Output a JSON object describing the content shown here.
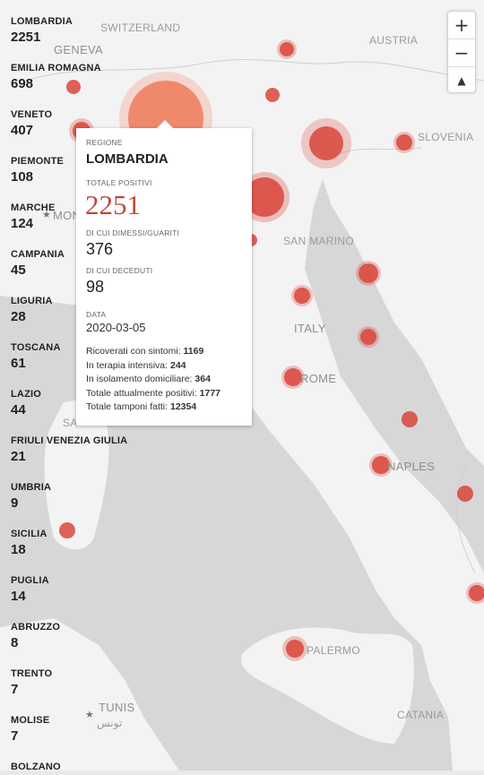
{
  "sidebar": {
    "regions": [
      {
        "name": "LOMBARDIA",
        "value": "2251"
      },
      {
        "name": "EMILIA ROMAGNA",
        "value": "698"
      },
      {
        "name": "VENETO",
        "value": "407"
      },
      {
        "name": "PIEMONTE",
        "value": "108"
      },
      {
        "name": "MARCHE",
        "value": "124"
      },
      {
        "name": "CAMPANIA",
        "value": "45"
      },
      {
        "name": "LIGURIA",
        "value": "28"
      },
      {
        "name": "TOSCANA",
        "value": "61"
      },
      {
        "name": "LAZIO",
        "value": "44"
      },
      {
        "name": "FRIULI VENEZIA GIULIA",
        "value": "21"
      },
      {
        "name": "UMBRIA",
        "value": "9"
      },
      {
        "name": "SICILIA",
        "value": "18"
      },
      {
        "name": "PUGLIA",
        "value": "14"
      },
      {
        "name": "ABRUZZO",
        "value": "8"
      },
      {
        "name": "TRENTO",
        "value": "7"
      },
      {
        "name": "MOLISE",
        "value": "7"
      },
      {
        "name": "BOLZANO",
        "value": ""
      }
    ]
  },
  "map": {
    "labels": {
      "switzerland": "SWITZERLAND",
      "austria": "AUSTRIA",
      "geneva": "GENEVA",
      "slovenia": "SLOVENIA",
      "san_marino": "SAN MARINO",
      "italy": "ITALY",
      "rome": "ROME",
      "naples": "NAPLES",
      "palermo": "PALERMO",
      "catania": "CATANIA",
      "tunis": "TUNIS",
      "tunis_ar": "تونس",
      "monaco_partial": "MON",
      "sassari_partial": "SA"
    },
    "colors": {
      "bubble": "#d9453a",
      "bubble_highlight": "#f07a5a",
      "land": "#f2f2f2",
      "sea": "#d6d6d6"
    }
  },
  "controls": {
    "zoom_in": "+",
    "zoom_out": "−",
    "reset_bearing": "▲"
  },
  "popup": {
    "region_label": "REGIONE",
    "region_name": "LOMBARDIA",
    "total_positive_label": "TOTALE POSITIVI",
    "total_positive": "2251",
    "recovered_label": "DI CUI DIMESSI/GUARITI",
    "recovered": "376",
    "deceased_label": "DI CUI DECEDUTI",
    "deceased": "98",
    "date_label": "DATA",
    "date": "2020-03-05",
    "details": [
      {
        "label": "Ricoverati con sintomi:",
        "value": "1169"
      },
      {
        "label": "In terapia intensiva:",
        "value": "244"
      },
      {
        "label": "In isolamento domiciliare:",
        "value": "364"
      },
      {
        "label": "Totale attualmente positivi:",
        "value": "1777"
      },
      {
        "label": "Totale tamponi fatti:",
        "value": "12354"
      }
    ]
  }
}
